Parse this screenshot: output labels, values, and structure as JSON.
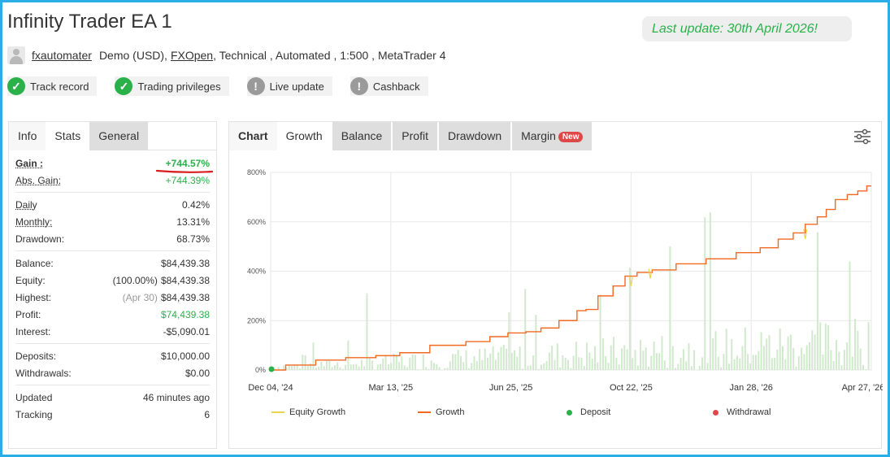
{
  "header": {
    "title": "Infinity Trader EA 1",
    "last_update": "Last update: 30th April 2026!",
    "username": "fxautomater",
    "account_type": "Demo (USD),",
    "broker": "FXOpen",
    "details": ", Technical , Automated , 1:500 , MetaTrader 4"
  },
  "badges": [
    {
      "label": "Track record",
      "status": "verified"
    },
    {
      "label": "Trading privileges",
      "status": "verified"
    },
    {
      "label": "Live update",
      "status": "unverified"
    },
    {
      "label": "Cashback",
      "status": "unverified"
    }
  ],
  "stats_panel": {
    "tabs": [
      "Info",
      "Stats",
      "General"
    ],
    "gain": {
      "label": "Gain :",
      "value": "+744.57%"
    },
    "abs_gain": {
      "label": "Abs. Gain:",
      "value": "+744.39%"
    },
    "daily": {
      "label": "Daily",
      "value": "0.42%"
    },
    "monthly": {
      "label": "Monthly:",
      "value": "13.31%"
    },
    "drawdown": {
      "label": "Drawdown:",
      "value": "68.73%"
    },
    "balance": {
      "label": "Balance:",
      "value": "$84,439.38"
    },
    "equity": {
      "label": "Equity:",
      "pct": "(100.00%)",
      "value": "$84,439.38"
    },
    "highest": {
      "label": "Highest:",
      "date": "(Apr 30)",
      "value": "$84,439.38"
    },
    "profit": {
      "label": "Profit:",
      "value": "$74,439.38"
    },
    "interest": {
      "label": "Interest:",
      "value": "-$5,090.01"
    },
    "deposits": {
      "label": "Deposits:",
      "value": "$10,000.00"
    },
    "withdrawals": {
      "label": "Withdrawals:",
      "value": "$0.00"
    },
    "updated": {
      "label": "Updated",
      "value": "46 minutes ago"
    },
    "tracking": {
      "label": "Tracking",
      "value": "6"
    }
  },
  "chart_panel": {
    "tabs": [
      "Chart",
      "Growth",
      "Balance",
      "Profit",
      "Drawdown",
      "Margin"
    ],
    "margin_badge": "New",
    "filter_icon": "sliders-icon"
  },
  "chart_data": {
    "type": "line",
    "yticks": [
      "800%",
      "600%",
      "400%",
      "200%",
      "0%"
    ],
    "xticks": [
      "Dec 04, '24",
      "Mar 13, '25",
      "Jun 25, '25",
      "Oct 22, '25",
      "Jan 28, '26",
      "Apr 27, '26"
    ],
    "ylim": [
      0,
      800
    ],
    "series": [
      {
        "name": "Equity Growth",
        "color": "#e8d44d"
      },
      {
        "name": "Growth",
        "color": "#f26a21"
      },
      {
        "name": "Deposit",
        "color": "#2bb14a"
      },
      {
        "name": "Withdrawal",
        "color": "#e04848"
      }
    ],
    "growth_points": [
      [
        0,
        0
      ],
      [
        0.05,
        20
      ],
      [
        0.1,
        40
      ],
      [
        0.15,
        50
      ],
      [
        0.2,
        58
      ],
      [
        0.23,
        70
      ],
      [
        0.3,
        100
      ],
      [
        0.35,
        115
      ],
      [
        0.38,
        135
      ],
      [
        0.41,
        150
      ],
      [
        0.44,
        155
      ],
      [
        0.46,
        170
      ],
      [
        0.5,
        200
      ],
      [
        0.52,
        240
      ],
      [
        0.53,
        245
      ],
      [
        0.56,
        300
      ],
      [
        0.58,
        340
      ],
      [
        0.6,
        380
      ],
      [
        0.62,
        395
      ],
      [
        0.65,
        405
      ],
      [
        0.7,
        430
      ],
      [
        0.75,
        450
      ],
      [
        0.8,
        475
      ],
      [
        0.83,
        495
      ],
      [
        0.86,
        530
      ],
      [
        0.88,
        555
      ],
      [
        0.9,
        590
      ],
      [
        0.92,
        620
      ],
      [
        0.93,
        650
      ],
      [
        0.95,
        690
      ],
      [
        0.97,
        710
      ],
      [
        0.985,
        725
      ],
      [
        1,
        745
      ]
    ],
    "equity_dips": [
      [
        0.6,
        340
      ],
      [
        0.632,
        370
      ],
      [
        0.89,
        530
      ]
    ]
  }
}
